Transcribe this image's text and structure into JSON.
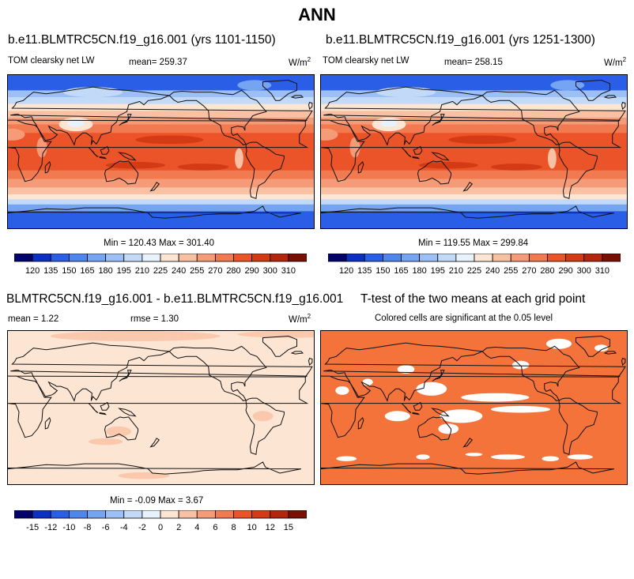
{
  "header": {
    "title": "ANN"
  },
  "panels": [
    {
      "id": "p1",
      "title": "b.e11.BLMTRC5CN.f19_g16.001 (yrs 1101-1150)",
      "variable": "TOM clearsky net LW",
      "mean_text": "mean= 259.37",
      "units": "W/m",
      "units_exp": "2",
      "minmax_text": "Min = 120.43 Max = 301.40"
    },
    {
      "id": "p2",
      "title": "b.e11.BLMTRC5CN.f19_g16.001 (yrs 1251-1300)",
      "variable": "TOM clearsky net LW",
      "mean_text": "mean= 258.15",
      "units": "W/m",
      "units_exp": "2",
      "minmax_text": "Min = 119.55 Max = 299.84"
    },
    {
      "id": "p3",
      "title": "BLMTRC5CN.f19_g16.001 - b.e11.BLMTRC5CN.f19_g16.001",
      "mean_text": "mean =   1.22",
      "rmse_text": "rmse =   1.30",
      "units": "W/m",
      "units_exp": "2",
      "minmax_text": "Min =  -0.09 Max =   3.67"
    },
    {
      "id": "p4",
      "title": "T-test of the two means at each grid point",
      "subtitle": "Colored cells are significant at the 0.05 level"
    }
  ],
  "chart_data": [
    {
      "type": "heatmap",
      "title": "b.e11.BLMTRC5CN.f19_g16.001 (yrs 1101-1150)",
      "field": "TOM clearsky net LW",
      "units": "W/m2",
      "mean": 259.37,
      "min": 120.43,
      "max": 301.4,
      "levels": [
        120,
        135,
        150,
        165,
        180,
        195,
        210,
        225,
        240,
        255,
        270,
        280,
        290,
        300,
        310
      ]
    },
    {
      "type": "heatmap",
      "title": "b.e11.BLMTRC5CN.f19_g16.001 (yrs 1251-1300)",
      "field": "TOM clearsky net LW",
      "units": "W/m2",
      "mean": 258.15,
      "min": 119.55,
      "max": 299.84,
      "levels": [
        120,
        135,
        150,
        165,
        180,
        195,
        210,
        225,
        240,
        255,
        270,
        280,
        290,
        300,
        310
      ]
    },
    {
      "type": "heatmap",
      "title": "BLMTRC5CN.f19_g16.001 - b.e11.BLMTRC5CN.f19_g16.001",
      "units": "W/m2",
      "mean": 1.22,
      "rmse": 1.3,
      "min": -0.09,
      "max": 3.67,
      "levels": [
        -15,
        -12,
        -10,
        -8,
        -6,
        -4,
        -2,
        0,
        2,
        4,
        6,
        8,
        10,
        12,
        15
      ]
    },
    {
      "type": "heatmap",
      "title": "T-test of the two means at each grid point",
      "subtitle": "Colored cells are significant at the 0.05 level",
      "significant_color": "#f4733b"
    }
  ],
  "colorbars": {
    "main": {
      "labels": [
        "120",
        "135",
        "150",
        "165",
        "180",
        "195",
        "210",
        "225",
        "240",
        "255",
        "270",
        "280",
        "290",
        "300",
        "310"
      ],
      "colors": [
        "#03036b",
        "#0c2fc4",
        "#2a5ee6",
        "#4f86ee",
        "#75a4f2",
        "#9cc0f5",
        "#c2daf8",
        "#e8f2fd",
        "#fde5d3",
        "#f9c1a4",
        "#f69b78",
        "#f27a51",
        "#ea5428",
        "#d43b14",
        "#b3250c",
        "#7a0f04"
      ]
    },
    "diff": {
      "labels": [
        "-15",
        "-12",
        "-10",
        "-8",
        "-6",
        "-4",
        "-2",
        "0",
        "2",
        "4",
        "6",
        "8",
        "10",
        "12",
        "15"
      ],
      "colors": [
        "#03036b",
        "#0c2fc4",
        "#2a5ee6",
        "#4f86ee",
        "#75a4f2",
        "#9cc0f5",
        "#c2daf8",
        "#e8f2fd",
        "#fde5d3",
        "#f9c1a4",
        "#f69b78",
        "#f27a51",
        "#ea5428",
        "#d43b14",
        "#b3250c",
        "#7a0f04"
      ]
    }
  }
}
